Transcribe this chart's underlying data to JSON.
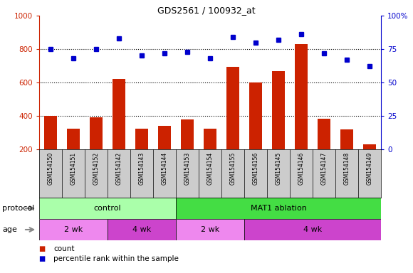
{
  "title": "GDS2561 / 100932_at",
  "samples": [
    "GSM154150",
    "GSM154151",
    "GSM154152",
    "GSM154142",
    "GSM154143",
    "GSM154144",
    "GSM154153",
    "GSM154154",
    "GSM154155",
    "GSM154156",
    "GSM154145",
    "GSM154146",
    "GSM154147",
    "GSM154148",
    "GSM154149"
  ],
  "counts": [
    400,
    325,
    390,
    620,
    325,
    340,
    380,
    325,
    695,
    600,
    670,
    830,
    385,
    320,
    230
  ],
  "percentile_ranks": [
    75,
    68,
    75,
    83,
    70,
    72,
    73,
    68,
    84,
    80,
    82,
    86,
    72,
    67,
    62
  ],
  "bar_color": "#cc2200",
  "dot_color": "#0000cc",
  "ylim_left": [
    200,
    1000
  ],
  "ylim_right": [
    0,
    100
  ],
  "yticks_left": [
    200,
    400,
    600,
    800,
    1000
  ],
  "yticks_right": [
    0,
    25,
    50,
    75,
    100
  ],
  "grid_lines": [
    400,
    600,
    800
  ],
  "protocol_groups": [
    {
      "label": "control",
      "start": 0,
      "end": 6,
      "color": "#aaffaa"
    },
    {
      "label": "MAT1 ablation",
      "start": 6,
      "end": 15,
      "color": "#44dd44"
    }
  ],
  "age_2wk_color": "#ee88ee",
  "age_4wk_color": "#cc44cc",
  "age_groups": [
    {
      "label": "2 wk",
      "start": 0,
      "end": 3
    },
    {
      "label": "4 wk",
      "start": 3,
      "end": 6
    },
    {
      "label": "2 wk",
      "start": 6,
      "end": 9
    },
    {
      "label": "4 wk",
      "start": 9,
      "end": 15
    }
  ],
  "xlabel_protocol": "protocol",
  "xlabel_age": "age",
  "legend_count_color": "#cc2200",
  "legend_dot_color": "#0000cc",
  "sample_bg_color": "#cccccc",
  "plot_bg": "#ffffff",
  "left_tick_color": "#cc2200",
  "right_tick_color": "#0000cc",
  "fig_width": 5.8,
  "fig_height": 3.84,
  "dpi": 100
}
